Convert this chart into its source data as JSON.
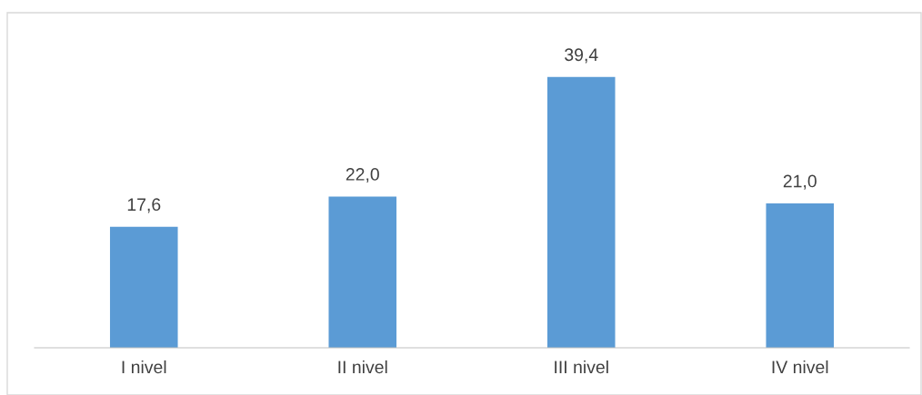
{
  "chart_data": {
    "type": "bar",
    "categories": [
      "I nivel",
      "II nivel",
      "III nivel",
      "IV nivel"
    ],
    "values": [
      17.6,
      22.0,
      39.4,
      21.0
    ],
    "value_labels": [
      "17,6",
      "22,0",
      "39,4",
      "21,0"
    ],
    "color": "#5b9bd5",
    "ylim": [
      0,
      48.5
    ],
    "grid": false,
    "legend": false
  }
}
